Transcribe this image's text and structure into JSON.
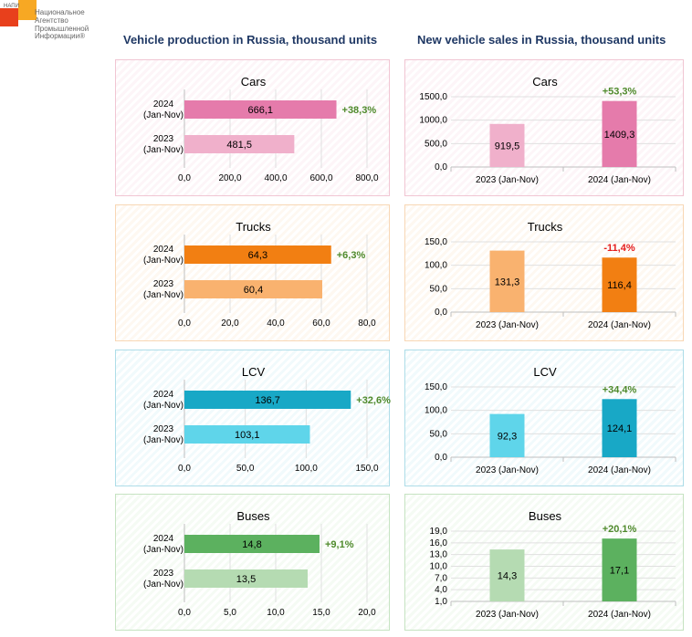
{
  "logo": {
    "abbr": "НАПИ",
    "text": "Национальное\nАгентство\nПромышленной\nИнформации®",
    "colors": [
      "#e8401c",
      "#f7a823"
    ]
  },
  "headers": {
    "production": "Vehicle production in Russia, thousand units",
    "sales": "New vehicle sales in Russia, thousand units"
  },
  "colors": {
    "cars": {
      "current": "#e57bab",
      "previous": "#f0b0cb"
    },
    "trucks": {
      "current": "#f27f12",
      "previous": "#f9b26f"
    },
    "lcv": {
      "current": "#18a8c6",
      "previous": "#5fd5ea"
    },
    "buses": {
      "current": "#5cb15f",
      "previous": "#b5dbb2"
    },
    "growth_positive": "#4f8a2c",
    "growth_negative": "#e41c1c"
  },
  "chart_data": [
    {
      "id": "production-cars",
      "type": "bar",
      "orientation": "horizontal",
      "title": "Cars",
      "categories": [
        "2024\n(Jan-Nov)",
        "2023\n(Jan-Nov)"
      ],
      "values": [
        666.1,
        481.5
      ],
      "value_labels": [
        "666,1",
        "481,5"
      ],
      "xticks": [
        "0,0",
        "200,0",
        "400,0",
        "600,0",
        "800,0"
      ],
      "xlim": [
        0,
        800
      ],
      "change": "+38,3%",
      "grid": true
    },
    {
      "id": "sales-cars",
      "type": "bar",
      "orientation": "vertical",
      "title": "Cars",
      "categories": [
        "2023 (Jan-Nov)",
        "2024 (Jan-Nov)"
      ],
      "values": [
        919.5,
        1409.3
      ],
      "value_labels": [
        "919,5",
        "1409,3"
      ],
      "yticks": [
        "0,0",
        "500,0",
        "1000,0",
        "1500,0"
      ],
      "ylim": [
        0,
        1500
      ],
      "change": "+53,3%",
      "grid": true
    },
    {
      "id": "production-trucks",
      "type": "bar",
      "orientation": "horizontal",
      "title": "Trucks",
      "categories": [
        "2024\n(Jan-Nov)",
        "2023\n(Jan-Nov)"
      ],
      "values": [
        64.3,
        60.4
      ],
      "value_labels": [
        "64,3",
        "60,4"
      ],
      "xticks": [
        "0,0",
        "20,0",
        "40,0",
        "60,0",
        "80,0"
      ],
      "xlim": [
        0,
        80
      ],
      "change": "+6,3%",
      "grid": true
    },
    {
      "id": "sales-trucks",
      "type": "bar",
      "orientation": "vertical",
      "title": "Trucks",
      "categories": [
        "2023 (Jan-Nov)",
        "2024 (Jan-Nov)"
      ],
      "values": [
        131.3,
        116.4
      ],
      "value_labels": [
        "131,3",
        "116,4"
      ],
      "yticks": [
        "0,0",
        "50,0",
        "100,0",
        "150,0"
      ],
      "ylim": [
        0,
        150
      ],
      "change": "-11,4%",
      "grid": true
    },
    {
      "id": "production-lcv",
      "type": "bar",
      "orientation": "horizontal",
      "title": "LCV",
      "categories": [
        "2024\n(Jan-Nov)",
        "2023\n(Jan-Nov)"
      ],
      "values": [
        136.7,
        103.1
      ],
      "value_labels": [
        "136,7",
        "103,1"
      ],
      "xticks": [
        "0,0",
        "50,0",
        "100,0",
        "150,0"
      ],
      "xlim": [
        0,
        150
      ],
      "change": "+32,6%",
      "grid": true
    },
    {
      "id": "sales-lcv",
      "type": "bar",
      "orientation": "vertical",
      "title": "LCV",
      "categories": [
        "2023 (Jan-Nov)",
        "2024 (Jan-Nov)"
      ],
      "values": [
        92.3,
        124.1
      ],
      "value_labels": [
        "92,3",
        "124,1"
      ],
      "yticks": [
        "0,0",
        "50,0",
        "100,0",
        "150,0"
      ],
      "ylim": [
        0,
        150
      ],
      "change": "+34,4%",
      "grid": true
    },
    {
      "id": "production-buses",
      "type": "bar",
      "orientation": "horizontal",
      "title": "Buses",
      "categories": [
        "2024\n(Jan-Nov)",
        "2023\n(Jan-Nov)"
      ],
      "values": [
        14.8,
        13.5
      ],
      "value_labels": [
        "14,8",
        "13,5"
      ],
      "xticks": [
        "0,0",
        "5,0",
        "10,0",
        "15,0",
        "20,0"
      ],
      "xlim": [
        0,
        20
      ],
      "change": "+9,1%",
      "grid": true
    },
    {
      "id": "sales-buses",
      "type": "bar",
      "orientation": "vertical",
      "title": "Buses",
      "categories": [
        "2023 (Jan-Nov)",
        "2024 (Jan-Nov)"
      ],
      "values": [
        14.3,
        17.1
      ],
      "value_labels": [
        "14,3",
        "17,1"
      ],
      "yticks": [
        "1,0",
        "4,0",
        "7,0",
        "10,0",
        "13,0",
        "16,0",
        "19,0"
      ],
      "ylim": [
        1,
        19
      ],
      "change": "+20,1%",
      "grid": true
    }
  ]
}
